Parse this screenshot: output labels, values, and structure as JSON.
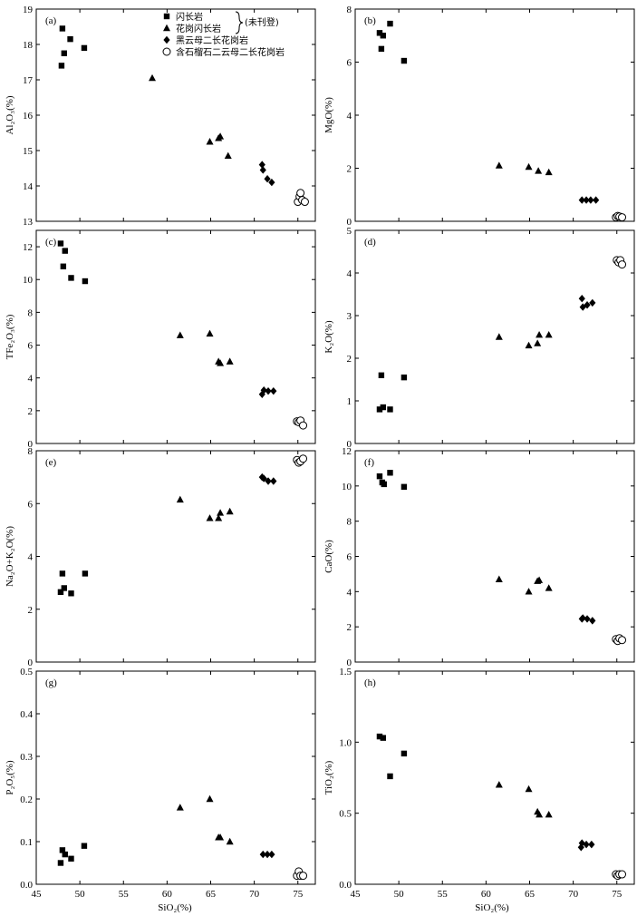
{
  "figure": {
    "xlabel": "SiO₂(%)",
    "legend": {
      "entries": [
        {
          "series": "diorite",
          "label": "闪长岩",
          "marker": "square"
        },
        {
          "series": "granodiorite",
          "label": "花岗闪长岩",
          "marker": "triangle"
        },
        {
          "series": "biotite_granite",
          "label": "黑云母二长花岗岩",
          "marker": "diamond"
        },
        {
          "series": "garnet_granite",
          "label": "含石榴石二云母二长花岗岩",
          "marker": "circle"
        }
      ],
      "bracket_note": "(未刊登)"
    }
  },
  "chart_data": [
    {
      "type": "scatter",
      "label": "(a)",
      "ylabel": "Al₂O₃(%)",
      "xlim": [
        45,
        77
      ],
      "ylim": [
        13,
        19
      ],
      "xticks": [
        45,
        50,
        55,
        60,
        65,
        70,
        75
      ],
      "yticks": [
        13,
        14,
        15,
        16,
        17,
        18,
        19
      ],
      "series": [
        {
          "key": "diorite",
          "points": [
            [
              47.9,
              17.4
            ],
            [
              48.0,
              18.45
            ],
            [
              48.2,
              17.75
            ],
            [
              48.9,
              18.15
            ],
            [
              50.5,
              17.9
            ]
          ]
        },
        {
          "key": "granodiorite",
          "points": [
            [
              58.3,
              17.05
            ],
            [
              64.9,
              15.25
            ],
            [
              65.9,
              15.35
            ],
            [
              66.1,
              15.4
            ],
            [
              67.0,
              14.85
            ]
          ]
        },
        {
          "key": "biotite_granite",
          "points": [
            [
              70.9,
              14.6
            ],
            [
              71.0,
              14.45
            ],
            [
              71.5,
              14.2
            ],
            [
              72.0,
              14.1
            ]
          ]
        },
        {
          "key": "garnet_granite",
          "points": [
            [
              75.0,
              13.55
            ],
            [
              75.2,
              13.7
            ],
            [
              75.3,
              13.8
            ],
            [
              75.5,
              13.6
            ],
            [
              75.8,
              13.55
            ]
          ]
        }
      ]
    },
    {
      "type": "scatter",
      "label": "(b)",
      "ylabel": "MgO(%)",
      "xlim": [
        45,
        77
      ],
      "ylim": [
        0,
        8
      ],
      "xticks": [
        45,
        50,
        55,
        60,
        65,
        70,
        75
      ],
      "yticks": [
        0,
        2,
        4,
        6,
        8
      ],
      "series": [
        {
          "key": "diorite",
          "points": [
            [
              47.8,
              7.1
            ],
            [
              48.0,
              6.5
            ],
            [
              48.2,
              7.0
            ],
            [
              49.0,
              7.45
            ],
            [
              50.6,
              6.05
            ]
          ]
        },
        {
          "key": "granodiorite",
          "points": [
            [
              61.5,
              2.1
            ],
            [
              64.9,
              2.05
            ],
            [
              66.0,
              1.9
            ],
            [
              67.2,
              1.85
            ]
          ]
        },
        {
          "key": "biotite_granite",
          "points": [
            [
              71.0,
              0.8
            ],
            [
              71.5,
              0.8
            ],
            [
              72.0,
              0.8
            ],
            [
              72.6,
              0.8
            ]
          ]
        },
        {
          "key": "garnet_granite",
          "points": [
            [
              74.9,
              0.15
            ],
            [
              75.1,
              0.2
            ],
            [
              75.3,
              0.18
            ],
            [
              75.6,
              0.15
            ]
          ]
        }
      ]
    },
    {
      "type": "scatter",
      "label": "(c)",
      "ylabel": "TFe₂O₃(%)",
      "xlim": [
        45,
        77
      ],
      "ylim": [
        0,
        13
      ],
      "xticks": [
        45,
        50,
        55,
        60,
        65,
        70,
        75
      ],
      "yticks": [
        0,
        2,
        4,
        6,
        8,
        10,
        12
      ],
      "series": [
        {
          "key": "diorite",
          "points": [
            [
              47.8,
              12.2
            ],
            [
              48.1,
              10.8
            ],
            [
              48.3,
              11.75
            ],
            [
              49.0,
              10.1
            ],
            [
              50.6,
              9.9
            ]
          ]
        },
        {
          "key": "granodiorite",
          "points": [
            [
              61.5,
              6.6
            ],
            [
              64.9,
              6.7
            ],
            [
              65.9,
              5.0
            ],
            [
              66.1,
              4.9
            ],
            [
              67.2,
              5.0
            ]
          ]
        },
        {
          "key": "biotite_granite",
          "points": [
            [
              70.9,
              3.0
            ],
            [
              71.1,
              3.25
            ],
            [
              71.6,
              3.2
            ],
            [
              72.2,
              3.2
            ]
          ]
        },
        {
          "key": "garnet_granite",
          "points": [
            [
              74.9,
              1.35
            ],
            [
              75.1,
              1.3
            ],
            [
              75.3,
              1.4
            ],
            [
              75.6,
              1.1
            ]
          ]
        }
      ]
    },
    {
      "type": "scatter",
      "label": "(d)",
      "ylabel": "K₂O(%)",
      "xlim": [
        45,
        77
      ],
      "ylim": [
        0,
        5
      ],
      "xticks": [
        45,
        50,
        55,
        60,
        65,
        70,
        75
      ],
      "yticks": [
        0,
        1,
        2,
        3,
        4,
        5
      ],
      "series": [
        {
          "key": "diorite",
          "points": [
            [
              47.8,
              0.8
            ],
            [
              48.0,
              1.6
            ],
            [
              48.2,
              0.85
            ],
            [
              49.0,
              0.8
            ],
            [
              50.6,
              1.55
            ]
          ]
        },
        {
          "key": "granodiorite",
          "points": [
            [
              61.5,
              2.5
            ],
            [
              64.9,
              2.3
            ],
            [
              65.9,
              2.35
            ],
            [
              66.1,
              2.55
            ],
            [
              67.2,
              2.55
            ]
          ]
        },
        {
          "key": "biotite_granite",
          "points": [
            [
              71.0,
              3.4
            ],
            [
              71.1,
              3.2
            ],
            [
              71.6,
              3.25
            ],
            [
              72.2,
              3.3
            ]
          ]
        },
        {
          "key": "garnet_granite",
          "points": [
            [
              75.0,
              4.3
            ],
            [
              75.2,
              4.25
            ],
            [
              75.4,
              4.3
            ],
            [
              75.6,
              4.2
            ]
          ]
        }
      ]
    },
    {
      "type": "scatter",
      "label": "(e)",
      "ylabel": "Na₂O+K₂O(%)",
      "xlim": [
        45,
        77
      ],
      "ylim": [
        0,
        8
      ],
      "xticks": [
        45,
        50,
        55,
        60,
        65,
        70,
        75
      ],
      "yticks": [
        0,
        2,
        4,
        6,
        8
      ],
      "series": [
        {
          "key": "diorite",
          "points": [
            [
              47.8,
              2.65
            ],
            [
              48.0,
              3.35
            ],
            [
              48.2,
              2.8
            ],
            [
              49.0,
              2.6
            ],
            [
              50.6,
              3.35
            ]
          ]
        },
        {
          "key": "granodiorite",
          "points": [
            [
              61.5,
              6.15
            ],
            [
              64.9,
              5.45
            ],
            [
              65.9,
              5.45
            ],
            [
              66.1,
              5.65
            ],
            [
              67.2,
              5.7
            ]
          ]
        },
        {
          "key": "biotite_granite",
          "points": [
            [
              70.9,
              7.0
            ],
            [
              71.1,
              6.95
            ],
            [
              71.6,
              6.85
            ],
            [
              72.2,
              6.85
            ]
          ]
        },
        {
          "key": "garnet_granite",
          "points": [
            [
              74.9,
              7.65
            ],
            [
              75.1,
              7.55
            ],
            [
              75.3,
              7.6
            ],
            [
              75.6,
              7.7
            ]
          ]
        }
      ]
    },
    {
      "type": "scatter",
      "label": "(f)",
      "ylabel": "CaO(%)",
      "xlim": [
        45,
        77
      ],
      "ylim": [
        0,
        12
      ],
      "xticks": [
        45,
        50,
        55,
        60,
        65,
        70,
        75
      ],
      "yticks": [
        0,
        2,
        4,
        6,
        8,
        10,
        12
      ],
      "series": [
        {
          "key": "diorite",
          "points": [
            [
              47.8,
              10.55
            ],
            [
              48.1,
              10.2
            ],
            [
              48.3,
              10.1
            ],
            [
              49.0,
              10.75
            ],
            [
              50.6,
              9.95
            ]
          ]
        },
        {
          "key": "granodiorite",
          "points": [
            [
              61.5,
              4.7
            ],
            [
              64.9,
              4.0
            ],
            [
              65.9,
              4.6
            ],
            [
              66.1,
              4.65
            ],
            [
              67.2,
              4.2
            ]
          ]
        },
        {
          "key": "biotite_granite",
          "points": [
            [
              71.0,
              2.45
            ],
            [
              71.1,
              2.5
            ],
            [
              71.6,
              2.45
            ],
            [
              72.2,
              2.35
            ]
          ]
        },
        {
          "key": "garnet_granite",
          "points": [
            [
              74.9,
              1.3
            ],
            [
              75.1,
              1.2
            ],
            [
              75.3,
              1.35
            ],
            [
              75.6,
              1.25
            ]
          ]
        }
      ]
    },
    {
      "type": "scatter",
      "label": "(g)",
      "ylabel": "P₂O₅(%)",
      "xlim": [
        45,
        77
      ],
      "ylim": [
        0,
        0.5
      ],
      "xticks": [
        45,
        50,
        55,
        60,
        65,
        70,
        75
      ],
      "yticks": [
        0.0,
        0.1,
        0.2,
        0.3,
        0.4,
        0.5
      ],
      "series": [
        {
          "key": "diorite",
          "points": [
            [
              47.8,
              0.05
            ],
            [
              48.0,
              0.08
            ],
            [
              48.3,
              0.07
            ],
            [
              49.0,
              0.06
            ],
            [
              50.5,
              0.09
            ]
          ]
        },
        {
          "key": "granodiorite",
          "points": [
            [
              61.5,
              0.18
            ],
            [
              64.9,
              0.2
            ],
            [
              65.9,
              0.11
            ],
            [
              66.1,
              0.11
            ],
            [
              67.2,
              0.1
            ]
          ]
        },
        {
          "key": "biotite_granite",
          "points": [
            [
              71.0,
              0.07
            ],
            [
              71.5,
              0.07
            ],
            [
              72.0,
              0.07
            ]
          ]
        },
        {
          "key": "garnet_granite",
          "points": [
            [
              74.9,
              0.02
            ],
            [
              75.1,
              0.03
            ],
            [
              75.3,
              0.02
            ],
            [
              75.6,
              0.02
            ]
          ]
        }
      ]
    },
    {
      "type": "scatter",
      "label": "(h)",
      "ylabel": "TiO₂(%)",
      "xlim": [
        45,
        77
      ],
      "ylim": [
        0,
        1.5
      ],
      "xticks": [
        45,
        50,
        55,
        60,
        65,
        70,
        75
      ],
      "yticks": [
        0.0,
        0.5,
        1.0,
        1.5
      ],
      "series": [
        {
          "key": "diorite",
          "points": [
            [
              47.8,
              1.04
            ],
            [
              48.2,
              1.03
            ],
            [
              49.0,
              0.76
            ],
            [
              50.6,
              0.92
            ]
          ]
        },
        {
          "key": "granodiorite",
          "points": [
            [
              61.5,
              0.7
            ],
            [
              64.9,
              0.67
            ],
            [
              65.9,
              0.51
            ],
            [
              66.1,
              0.49
            ],
            [
              67.2,
              0.49
            ]
          ]
        },
        {
          "key": "biotite_granite",
          "points": [
            [
              70.9,
              0.26
            ],
            [
              71.0,
              0.29
            ],
            [
              71.5,
              0.28
            ],
            [
              72.1,
              0.28
            ]
          ]
        },
        {
          "key": "garnet_granite",
          "points": [
            [
              74.9,
              0.07
            ],
            [
              75.1,
              0.06
            ],
            [
              75.3,
              0.07
            ],
            [
              75.6,
              0.07
            ]
          ]
        }
      ]
    }
  ]
}
